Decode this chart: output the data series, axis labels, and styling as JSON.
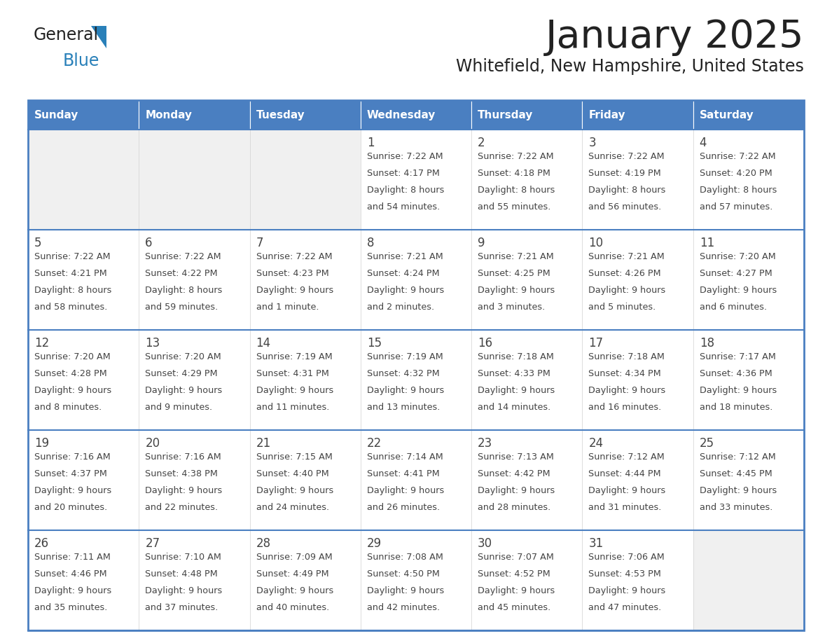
{
  "title": "January 2025",
  "subtitle": "Whitefield, New Hampshire, United States",
  "days_of_week": [
    "Sunday",
    "Monday",
    "Tuesday",
    "Wednesday",
    "Thursday",
    "Friday",
    "Saturday"
  ],
  "header_bg": "#4a7fc1",
  "header_text": "#FFFFFF",
  "cell_bg_light": "#f0f0f0",
  "cell_bg_white": "#FFFFFF",
  "border_color": "#4a7fc1",
  "text_color": "#444444",
  "title_color": "#222222",
  "logo_general_color": "#222222",
  "logo_blue_color": "#2980B9",
  "calendar_data": [
    [
      {
        "day": null,
        "sunrise": null,
        "sunset": null,
        "daylight": null
      },
      {
        "day": null,
        "sunrise": null,
        "sunset": null,
        "daylight": null
      },
      {
        "day": null,
        "sunrise": null,
        "sunset": null,
        "daylight": null
      },
      {
        "day": 1,
        "sunrise": "7:22 AM",
        "sunset": "4:17 PM",
        "daylight": "8 hours\nand 54 minutes."
      },
      {
        "day": 2,
        "sunrise": "7:22 AM",
        "sunset": "4:18 PM",
        "daylight": "8 hours\nand 55 minutes."
      },
      {
        "day": 3,
        "sunrise": "7:22 AM",
        "sunset": "4:19 PM",
        "daylight": "8 hours\nand 56 minutes."
      },
      {
        "day": 4,
        "sunrise": "7:22 AM",
        "sunset": "4:20 PM",
        "daylight": "8 hours\nand 57 minutes."
      }
    ],
    [
      {
        "day": 5,
        "sunrise": "7:22 AM",
        "sunset": "4:21 PM",
        "daylight": "8 hours\nand 58 minutes."
      },
      {
        "day": 6,
        "sunrise": "7:22 AM",
        "sunset": "4:22 PM",
        "daylight": "8 hours\nand 59 minutes."
      },
      {
        "day": 7,
        "sunrise": "7:22 AM",
        "sunset": "4:23 PM",
        "daylight": "9 hours\nand 1 minute."
      },
      {
        "day": 8,
        "sunrise": "7:21 AM",
        "sunset": "4:24 PM",
        "daylight": "9 hours\nand 2 minutes."
      },
      {
        "day": 9,
        "sunrise": "7:21 AM",
        "sunset": "4:25 PM",
        "daylight": "9 hours\nand 3 minutes."
      },
      {
        "day": 10,
        "sunrise": "7:21 AM",
        "sunset": "4:26 PM",
        "daylight": "9 hours\nand 5 minutes."
      },
      {
        "day": 11,
        "sunrise": "7:20 AM",
        "sunset": "4:27 PM",
        "daylight": "9 hours\nand 6 minutes."
      }
    ],
    [
      {
        "day": 12,
        "sunrise": "7:20 AM",
        "sunset": "4:28 PM",
        "daylight": "9 hours\nand 8 minutes."
      },
      {
        "day": 13,
        "sunrise": "7:20 AM",
        "sunset": "4:29 PM",
        "daylight": "9 hours\nand 9 minutes."
      },
      {
        "day": 14,
        "sunrise": "7:19 AM",
        "sunset": "4:31 PM",
        "daylight": "9 hours\nand 11 minutes."
      },
      {
        "day": 15,
        "sunrise": "7:19 AM",
        "sunset": "4:32 PM",
        "daylight": "9 hours\nand 13 minutes."
      },
      {
        "day": 16,
        "sunrise": "7:18 AM",
        "sunset": "4:33 PM",
        "daylight": "9 hours\nand 14 minutes."
      },
      {
        "day": 17,
        "sunrise": "7:18 AM",
        "sunset": "4:34 PM",
        "daylight": "9 hours\nand 16 minutes."
      },
      {
        "day": 18,
        "sunrise": "7:17 AM",
        "sunset": "4:36 PM",
        "daylight": "9 hours\nand 18 minutes."
      }
    ],
    [
      {
        "day": 19,
        "sunrise": "7:16 AM",
        "sunset": "4:37 PM",
        "daylight": "9 hours\nand 20 minutes."
      },
      {
        "day": 20,
        "sunrise": "7:16 AM",
        "sunset": "4:38 PM",
        "daylight": "9 hours\nand 22 minutes."
      },
      {
        "day": 21,
        "sunrise": "7:15 AM",
        "sunset": "4:40 PM",
        "daylight": "9 hours\nand 24 minutes."
      },
      {
        "day": 22,
        "sunrise": "7:14 AM",
        "sunset": "4:41 PM",
        "daylight": "9 hours\nand 26 minutes."
      },
      {
        "day": 23,
        "sunrise": "7:13 AM",
        "sunset": "4:42 PM",
        "daylight": "9 hours\nand 28 minutes."
      },
      {
        "day": 24,
        "sunrise": "7:12 AM",
        "sunset": "4:44 PM",
        "daylight": "9 hours\nand 31 minutes."
      },
      {
        "day": 25,
        "sunrise": "7:12 AM",
        "sunset": "4:45 PM",
        "daylight": "9 hours\nand 33 minutes."
      }
    ],
    [
      {
        "day": 26,
        "sunrise": "7:11 AM",
        "sunset": "4:46 PM",
        "daylight": "9 hours\nand 35 minutes."
      },
      {
        "day": 27,
        "sunrise": "7:10 AM",
        "sunset": "4:48 PM",
        "daylight": "9 hours\nand 37 minutes."
      },
      {
        "day": 28,
        "sunrise": "7:09 AM",
        "sunset": "4:49 PM",
        "daylight": "9 hours\nand 40 minutes."
      },
      {
        "day": 29,
        "sunrise": "7:08 AM",
        "sunset": "4:50 PM",
        "daylight": "9 hours\nand 42 minutes."
      },
      {
        "day": 30,
        "sunrise": "7:07 AM",
        "sunset": "4:52 PM",
        "daylight": "9 hours\nand 45 minutes."
      },
      {
        "day": 31,
        "sunrise": "7:06 AM",
        "sunset": "4:53 PM",
        "daylight": "9 hours\nand 47 minutes."
      },
      {
        "day": null,
        "sunrise": null,
        "sunset": null,
        "daylight": null
      }
    ]
  ]
}
